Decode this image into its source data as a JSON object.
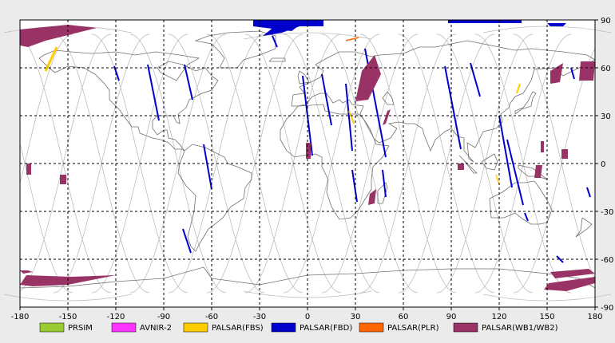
{
  "map": {
    "lon_ticks": [
      "-180",
      "-150",
      "-120",
      "-90",
      "-60",
      "-30",
      "0",
      "30",
      "60",
      "90",
      "120",
      "150",
      "180"
    ],
    "lat_ticks": [
      "90",
      "60",
      "30",
      "0",
      "-30",
      "-60",
      "-90"
    ],
    "colors": {
      "background": "#ebebeb",
      "plot_bg": "#ffffff",
      "grid": "#000000",
      "orbit": "#b8b8b8",
      "coast": "#707070"
    }
  },
  "legend": [
    {
      "label": "PRSIM",
      "color": "#99cc33"
    },
    {
      "label": "AVNIR-2",
      "color": "#ff33ff"
    },
    {
      "label": "PALSAR(FBS)",
      "color": "#ffcc00"
    },
    {
      "label": "PALSAR(FBD)",
      "color": "#0000cc"
    },
    {
      "label": "PALSAR(PLR)",
      "color": "#ff6600"
    },
    {
      "label": "PALSAR(WB1/WB2)",
      "color": "#993366"
    }
  ]
}
